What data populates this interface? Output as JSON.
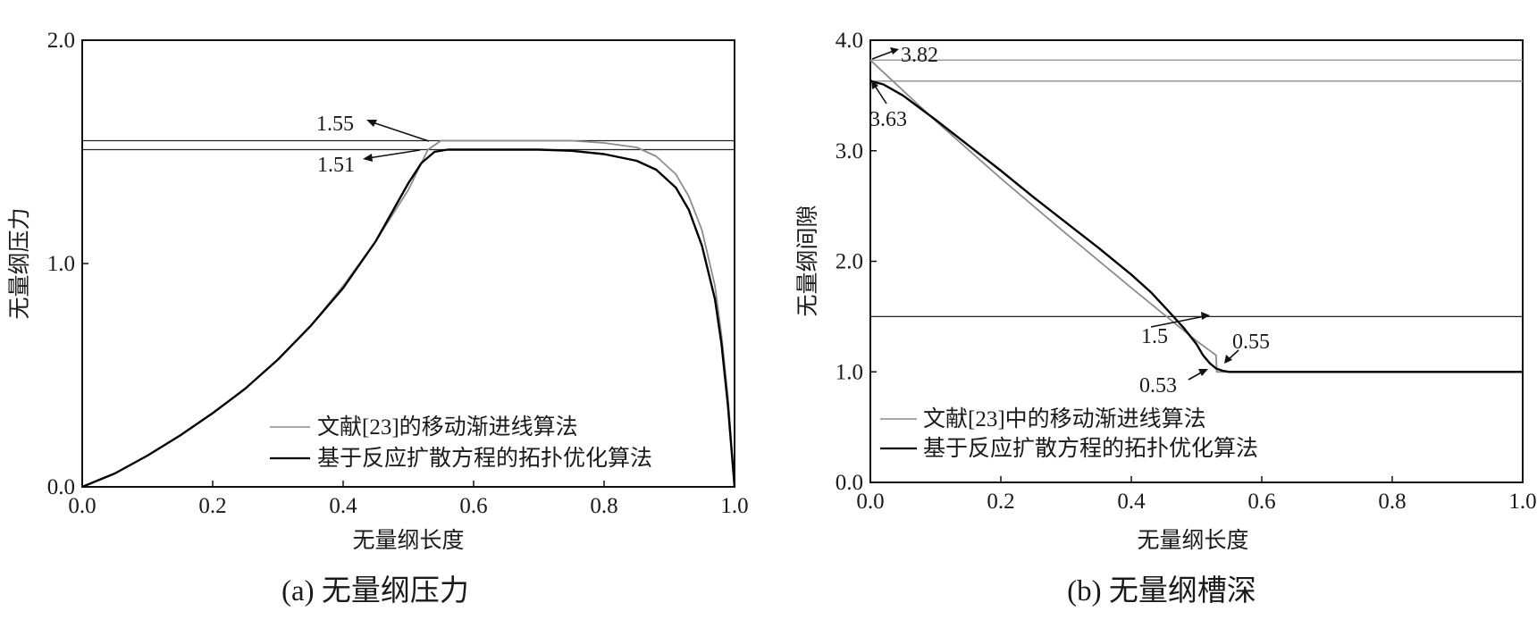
{
  "chart_data": [
    {
      "type": "line",
      "caption": "(a) 无量纲压力",
      "xlabel": "无量纲长度",
      "ylabel": "无量纲压力",
      "xlim": [
        0,
        1
      ],
      "ylim": [
        0,
        2
      ],
      "xticks": [
        "0.0",
        "0.2",
        "0.4",
        "0.6",
        "0.8",
        "1.0"
      ],
      "yticks": [
        "0.0",
        "1.0",
        "2.0"
      ],
      "grid": false,
      "legend_position": "bottom-right",
      "hlines": [
        1.55,
        1.51
      ],
      "annotations": [
        "1.55",
        "1.51"
      ],
      "series": [
        {
          "name": "文献[23]的移动渐进线算法",
          "color": "#8c8c8c",
          "x": [
            0,
            0.05,
            0.1,
            0.15,
            0.2,
            0.25,
            0.3,
            0.35,
            0.4,
            0.45,
            0.5,
            0.53,
            0.55,
            0.6,
            0.65,
            0.7,
            0.75,
            0.8,
            0.85,
            0.88,
            0.91,
            0.93,
            0.95,
            0.97,
            0.98,
            0.99,
            1.0
          ],
          "y": [
            0,
            0.06,
            0.14,
            0.23,
            0.33,
            0.44,
            0.57,
            0.72,
            0.9,
            1.1,
            1.33,
            1.51,
            1.55,
            1.55,
            1.55,
            1.55,
            1.55,
            1.54,
            1.52,
            1.48,
            1.4,
            1.3,
            1.15,
            0.9,
            0.68,
            0.4,
            0
          ]
        },
        {
          "name": "基于反应扩散方程的拓扑优化算法",
          "color": "#000000",
          "x": [
            0,
            0.05,
            0.1,
            0.15,
            0.2,
            0.25,
            0.3,
            0.35,
            0.4,
            0.45,
            0.5,
            0.52,
            0.54,
            0.56,
            0.6,
            0.65,
            0.7,
            0.75,
            0.8,
            0.85,
            0.88,
            0.91,
            0.93,
            0.95,
            0.97,
            0.98,
            0.99,
            1.0
          ],
          "y": [
            0,
            0.06,
            0.14,
            0.23,
            0.33,
            0.44,
            0.57,
            0.72,
            0.89,
            1.1,
            1.36,
            1.45,
            1.5,
            1.51,
            1.51,
            1.51,
            1.51,
            1.505,
            1.49,
            1.46,
            1.42,
            1.34,
            1.24,
            1.08,
            0.84,
            0.64,
            0.36,
            0
          ]
        }
      ]
    },
    {
      "type": "line",
      "caption": "(b) 无量纲槽深",
      "xlabel": "无量纲长度",
      "ylabel": "无量纲间隙",
      "xlim": [
        0,
        1
      ],
      "ylim": [
        0,
        4
      ],
      "xticks": [
        "0.0",
        "0.2",
        "0.4",
        "0.6",
        "0.8",
        "1.0"
      ],
      "yticks": [
        "0.0",
        "1.0",
        "2.0",
        "3.0",
        "4.0"
      ],
      "grid": false,
      "legend_position": "bottom-left",
      "hlines": [
        3.82,
        3.63,
        1.5
      ],
      "annotations": [
        "3.82",
        "3.63",
        "1.5",
        "0.53",
        "0.55"
      ],
      "series": [
        {
          "name": "文献[23]中的移动渐进线算法",
          "color": "#8c8c8c",
          "x": [
            0,
            0.1,
            0.2,
            0.3,
            0.4,
            0.45,
            0.5,
            0.53,
            0.531,
            0.54,
            0.6,
            0.8,
            1.0
          ],
          "y": [
            3.82,
            3.27,
            2.75,
            2.25,
            1.76,
            1.52,
            1.28,
            1.15,
            1.0,
            1.0,
            1.0,
            1.0,
            1.0
          ]
        },
        {
          "name": "基于反应扩散方程的拓扑优化算法",
          "color": "#000000",
          "x": [
            0,
            0.02,
            0.05,
            0.1,
            0.15,
            0.2,
            0.25,
            0.3,
            0.35,
            0.4,
            0.43,
            0.46,
            0.48,
            0.5,
            0.51,
            0.52,
            0.53,
            0.54,
            0.55,
            0.6,
            0.8,
            1.0
          ],
          "y": [
            3.63,
            3.6,
            3.5,
            3.28,
            3.05,
            2.82,
            2.58,
            2.35,
            2.12,
            1.88,
            1.72,
            1.53,
            1.4,
            1.25,
            1.15,
            1.08,
            1.03,
            1.01,
            1.0,
            1.0,
            1.0,
            1.0
          ]
        }
      ]
    }
  ]
}
